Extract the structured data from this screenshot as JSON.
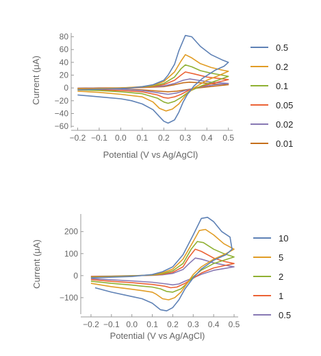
{
  "chart_data": [
    {
      "type": "line",
      "xlabel": "Potential (V vs Ag/AgCl)",
      "ylabel": "Current (μA)",
      "xlim": [
        -0.23,
        0.52
      ],
      "ylim": [
        -62,
        86
      ],
      "xticks": [
        -0.2,
        -0.1,
        0.0,
        0.1,
        0.2,
        0.3,
        0.4,
        0.5
      ],
      "xtick_labels": [
        "−0.2",
        "−0.1",
        "0.0",
        "0.1",
        "0.2",
        "0.3",
        "0.4",
        "0.5"
      ],
      "yticks": [
        -60,
        -40,
        -20,
        0,
        20,
        40,
        60,
        80
      ],
      "ytick_labels": [
        "−60",
        "−40",
        "−20",
        "0",
        "20",
        "40",
        "60",
        "80"
      ],
      "grid": false,
      "legend_position": "right",
      "series": [
        {
          "name": "0.5",
          "color": "#5e81b5",
          "x": [
            -0.2,
            -0.1,
            0.0,
            0.05,
            0.1,
            0.15,
            0.2,
            0.22,
            0.25,
            0.27,
            0.3,
            0.33,
            0.37,
            0.42,
            0.47,
            0.5,
            0.48,
            0.44,
            0.38,
            0.34,
            0.31,
            0.29,
            0.27,
            0.25,
            0.22,
            0.2,
            0.18,
            0.15,
            0.1,
            0.05,
            0.0,
            -0.1,
            -0.2
          ],
          "y": [
            -3,
            -2,
            -1,
            0,
            2,
            5,
            12,
            20,
            37,
            58,
            82,
            80,
            65,
            52,
            44,
            40,
            34,
            28,
            15,
            3,
            -10,
            -22,
            -38,
            -50,
            -55,
            -52,
            -45,
            -34,
            -25,
            -20,
            -17,
            -14,
            -11
          ]
        },
        {
          "name": "0.2",
          "color": "#e19c24",
          "x": [
            -0.2,
            -0.1,
            0.0,
            0.05,
            0.1,
            0.15,
            0.2,
            0.25,
            0.28,
            0.3,
            0.33,
            0.37,
            0.42,
            0.47,
            0.5,
            0.46,
            0.4,
            0.34,
            0.3,
            0.27,
            0.24,
            0.21,
            0.18,
            0.15,
            0.1,
            0.0,
            -0.1,
            -0.2
          ],
          "y": [
            -2,
            -1,
            0,
            1,
            2,
            4,
            10,
            25,
            42,
            52,
            47,
            38,
            32,
            28,
            26,
            20,
            12,
            0,
            -12,
            -25,
            -33,
            -36,
            -32,
            -22,
            -14,
            -10,
            -7,
            -5
          ]
        },
        {
          "name": "0.1",
          "color": "#8fb032",
          "x": [
            -0.2,
            -0.1,
            0.0,
            0.1,
            0.15,
            0.2,
            0.25,
            0.28,
            0.3,
            0.33,
            0.37,
            0.42,
            0.47,
            0.5,
            0.45,
            0.38,
            0.32,
            0.28,
            0.25,
            0.22,
            0.2,
            0.17,
            0.1,
            0.0,
            -0.1,
            -0.2
          ],
          "y": [
            -1.5,
            -1,
            0,
            1.5,
            3,
            7,
            17,
            30,
            36,
            33,
            27,
            23,
            20,
            18,
            12,
            4,
            -5,
            -15,
            -21,
            -24,
            -22,
            -16,
            -9,
            -6,
            -4,
            -3
          ]
        },
        {
          "name": "0.05",
          "color": "#eb6235",
          "x": [
            -0.2,
            -0.1,
            0.0,
            0.1,
            0.15,
            0.2,
            0.25,
            0.28,
            0.3,
            0.34,
            0.4,
            0.45,
            0.5,
            0.45,
            0.38,
            0.32,
            0.28,
            0.25,
            0.22,
            0.2,
            0.17,
            0.1,
            0.0,
            -0.1,
            -0.2
          ],
          "y": [
            -1,
            -0.5,
            0,
            1,
            2,
            5,
            12,
            20,
            25,
            22,
            17,
            15,
            13,
            9,
            3,
            -3,
            -10,
            -14,
            -16,
            -15,
            -11,
            -6,
            -4,
            -3,
            -2
          ]
        },
        {
          "name": "0.02",
          "color": "#8778b3",
          "x": [
            -0.2,
            -0.1,
            0.0,
            0.1,
            0.2,
            0.25,
            0.29,
            0.32,
            0.36,
            0.42,
            0.5,
            0.44,
            0.36,
            0.3,
            0.26,
            0.22,
            0.18,
            0.1,
            0.0,
            -0.1,
            -0.2
          ],
          "y": [
            -0.5,
            0,
            0,
            0.8,
            3,
            7,
            12,
            14,
            12,
            9,
            7,
            5,
            1,
            -4,
            -8,
            -10,
            -8,
            -4,
            -2,
            -1.5,
            -1
          ]
        },
        {
          "name": "0.01",
          "color": "#c56e1a",
          "x": [
            -0.2,
            -0.1,
            0.0,
            0.1,
            0.2,
            0.25,
            0.29,
            0.32,
            0.37,
            0.44,
            0.5,
            0.44,
            0.36,
            0.3,
            0.26,
            0.22,
            0.18,
            0.1,
            0.0,
            -0.1,
            -0.2
          ],
          "y": [
            -0.3,
            0,
            0,
            0.5,
            2,
            5,
            8,
            9,
            8,
            6,
            5,
            3,
            0,
            -3,
            -5,
            -6,
            -5,
            -3,
            -1.5,
            -1,
            -0.6
          ]
        }
      ]
    },
    {
      "type": "line",
      "xlabel": "Potential (V vs Ag/AgCl)",
      "ylabel": "Current (μA)",
      "xlim": [
        -0.25,
        0.52
      ],
      "ylim": [
        -175,
        280
      ],
      "xticks": [
        -0.2,
        -0.1,
        0.0,
        0.1,
        0.2,
        0.3,
        0.4,
        0.5
      ],
      "xtick_labels": [
        "−0.2",
        "−0.1",
        "0.0",
        "0.1",
        "0.2",
        "0.3",
        "0.4",
        "0.5"
      ],
      "yticks": [
        -100,
        0,
        100,
        200
      ],
      "ytick_labels": [
        "−100",
        "0",
        "100",
        "200"
      ],
      "grid": false,
      "legend_position": "right",
      "series": [
        {
          "name": "10",
          "color": "#5e81b5",
          "x": [
            -0.2,
            -0.1,
            0.0,
            0.1,
            0.15,
            0.2,
            0.25,
            0.3,
            0.34,
            0.37,
            0.4,
            0.44,
            0.48,
            0.49,
            0.46,
            0.4,
            0.34,
            0.3,
            0.26,
            0.23,
            0.2,
            0.17,
            0.14,
            0.1,
            0.05,
            0.0,
            -0.1,
            -0.18
          ],
          "y": [
            -10,
            -7,
            -4,
            5,
            18,
            40,
            95,
            185,
            260,
            265,
            245,
            200,
            175,
            120,
            95,
            70,
            30,
            -10,
            -60,
            -110,
            -145,
            -160,
            -155,
            -125,
            -105,
            -95,
            -75,
            -55
          ]
        },
        {
          "name": "5",
          "color": "#e19c24",
          "x": [
            -0.2,
            -0.1,
            0.0,
            0.1,
            0.15,
            0.2,
            0.25,
            0.3,
            0.33,
            0.36,
            0.4,
            0.45,
            0.5,
            0.46,
            0.4,
            0.34,
            0.3,
            0.27,
            0.24,
            0.21,
            0.18,
            0.15,
            0.12,
            0.1,
            0.05,
            0.0,
            -0.1,
            -0.2
          ],
          "y": [
            -8,
            -5,
            -2,
            4,
            13,
            30,
            75,
            155,
            205,
            210,
            185,
            145,
            120,
            100,
            75,
            40,
            5,
            -35,
            -75,
            -100,
            -110,
            -105,
            -85,
            -75,
            -68,
            -62,
            -50,
            -35
          ]
        },
        {
          "name": "2",
          "color": "#8fb032",
          "x": [
            -0.2,
            -0.1,
            0.0,
            0.1,
            0.15,
            0.2,
            0.25,
            0.29,
            0.32,
            0.35,
            0.4,
            0.45,
            0.5,
            0.45,
            0.4,
            0.34,
            0.3,
            0.27,
            0.24,
            0.2,
            0.17,
            0.14,
            0.1,
            0.05,
            0.0,
            -0.1,
            -0.2
          ],
          "y": [
            -6,
            -4,
            -1,
            3,
            9,
            22,
            55,
            120,
            155,
            150,
            120,
            100,
            85,
            70,
            55,
            25,
            -5,
            -35,
            -60,
            -75,
            -72,
            -60,
            -52,
            -48,
            -43,
            -35,
            -25
          ]
        },
        {
          "name": "1",
          "color": "#eb6235",
          "x": [
            -0.2,
            -0.1,
            0.0,
            0.1,
            0.15,
            0.2,
            0.25,
            0.28,
            0.31,
            0.34,
            0.4,
            0.45,
            0.5,
            0.45,
            0.4,
            0.34,
            0.3,
            0.26,
            0.22,
            0.19,
            0.16,
            0.1,
            0.05,
            0.0,
            -0.1,
            -0.2
          ],
          "y": [
            -4,
            -3,
            -1,
            2,
            6,
            15,
            40,
            85,
            120,
            110,
            80,
            65,
            55,
            45,
            35,
            12,
            -12,
            -35,
            -52,
            -55,
            -48,
            -40,
            -36,
            -32,
            -26,
            -18
          ]
        },
        {
          "name": "0.5",
          "color": "#8778b3",
          "x": [
            -0.2,
            -0.1,
            0.0,
            0.1,
            0.15,
            0.2,
            0.25,
            0.28,
            0.31,
            0.34,
            0.4,
            0.46,
            0.5,
            0.45,
            0.4,
            0.34,
            0.3,
            0.26,
            0.23,
            0.2,
            0.17,
            0.1,
            0.05,
            0.0,
            -0.1,
            -0.2
          ],
          "y": [
            -3,
            -2,
            0,
            1,
            4,
            10,
            28,
            55,
            80,
            75,
            58,
            47,
            40,
            32,
            24,
            6,
            -10,
            -25,
            -38,
            -42,
            -38,
            -30,
            -27,
            -24,
            -19,
            -13
          ]
        }
      ]
    }
  ]
}
